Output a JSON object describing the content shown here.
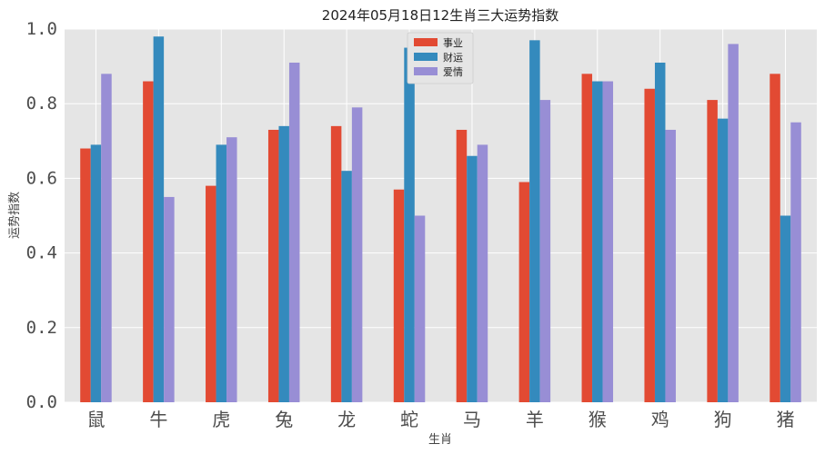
{
  "chart_data": {
    "type": "bar",
    "title": "2024年05月18日12生肖三大运势指数",
    "xlabel": "生肖",
    "ylabel": "运势指数",
    "ylim": [
      0,
      1.0
    ],
    "yticks": [
      "0.0",
      "0.2",
      "0.4",
      "0.6",
      "0.8",
      "1.0"
    ],
    "ytick_values": [
      0,
      0.2,
      0.4,
      0.6,
      0.8,
      1.0
    ],
    "grid": true,
    "legend_position": "top-center",
    "categories": [
      "鼠",
      "牛",
      "虎",
      "兔",
      "龙",
      "蛇",
      "马",
      "羊",
      "猴",
      "鸡",
      "狗",
      "猪"
    ],
    "series": [
      {
        "name": "事业",
        "color": "#e24a33",
        "values": [
          0.68,
          0.86,
          0.58,
          0.73,
          0.74,
          0.57,
          0.73,
          0.59,
          0.88,
          0.84,
          0.81,
          0.88
        ]
      },
      {
        "name": "财运",
        "color": "#348abd",
        "values": [
          0.69,
          0.98,
          0.69,
          0.74,
          0.62,
          0.95,
          0.66,
          0.97,
          0.86,
          0.91,
          0.76,
          0.5
        ]
      },
      {
        "name": "爱情",
        "color": "#988ed5",
        "values": [
          0.88,
          0.55,
          0.71,
          0.91,
          0.79,
          0.5,
          0.69,
          0.81,
          0.86,
          0.73,
          0.96,
          0.75
        ]
      }
    ]
  },
  "colors": {
    "plot_background": "#e5e5e5",
    "grid": "#ffffff"
  }
}
